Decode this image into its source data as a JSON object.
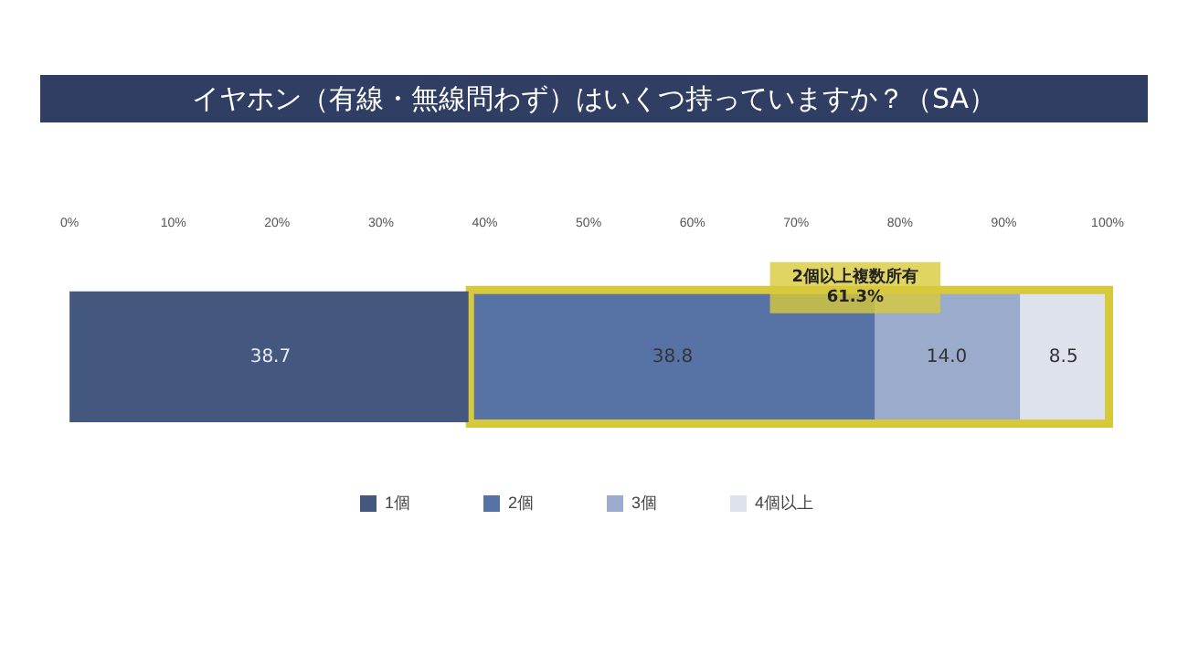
{
  "chart_data": {
    "type": "bar",
    "orientation": "horizontal",
    "stacked": true,
    "title": "イヤホン（有線・無線問わず）はいくつ持っていますか？（SA）",
    "categories": [
      null
    ],
    "series": [
      {
        "name": "1個",
        "color": "#44587f",
        "values": [
          38.7
        ],
        "value_labels": [
          "38.7"
        ]
      },
      {
        "name": "2個",
        "color": "#5773a6",
        "values": [
          38.8
        ],
        "value_labels": [
          "38.8"
        ]
      },
      {
        "name": "3個",
        "color": "#9aabcb",
        "values": [
          14.0
        ],
        "value_labels": [
          "14.0"
        ]
      },
      {
        "name": "4個以上",
        "color": "#dde2ed",
        "values": [
          8.5
        ],
        "value_labels": [
          "8.5"
        ]
      }
    ],
    "xlim": [
      0,
      100
    ],
    "xticks": [
      {
        "value": 0,
        "label": "0%"
      },
      {
        "value": 10,
        "label": "10%"
      },
      {
        "value": 20,
        "label": "20%"
      },
      {
        "value": 30,
        "label": "30%"
      },
      {
        "value": 40,
        "label": "40%"
      },
      {
        "value": 50,
        "label": "50%"
      },
      {
        "value": 60,
        "label": "60%"
      },
      {
        "value": 70,
        "label": "70%"
      },
      {
        "value": 80,
        "label": "80%"
      },
      {
        "value": 90,
        "label": "90%"
      },
      {
        "value": 100,
        "label": "100%"
      }
    ],
    "bands": [
      {
        "axis": "x",
        "from": 38.7,
        "to": 100,
        "label": "2個以上複数所有\n61.3%",
        "color": "#d8c93c"
      }
    ],
    "grid": false,
    "legend": "bottom"
  }
}
